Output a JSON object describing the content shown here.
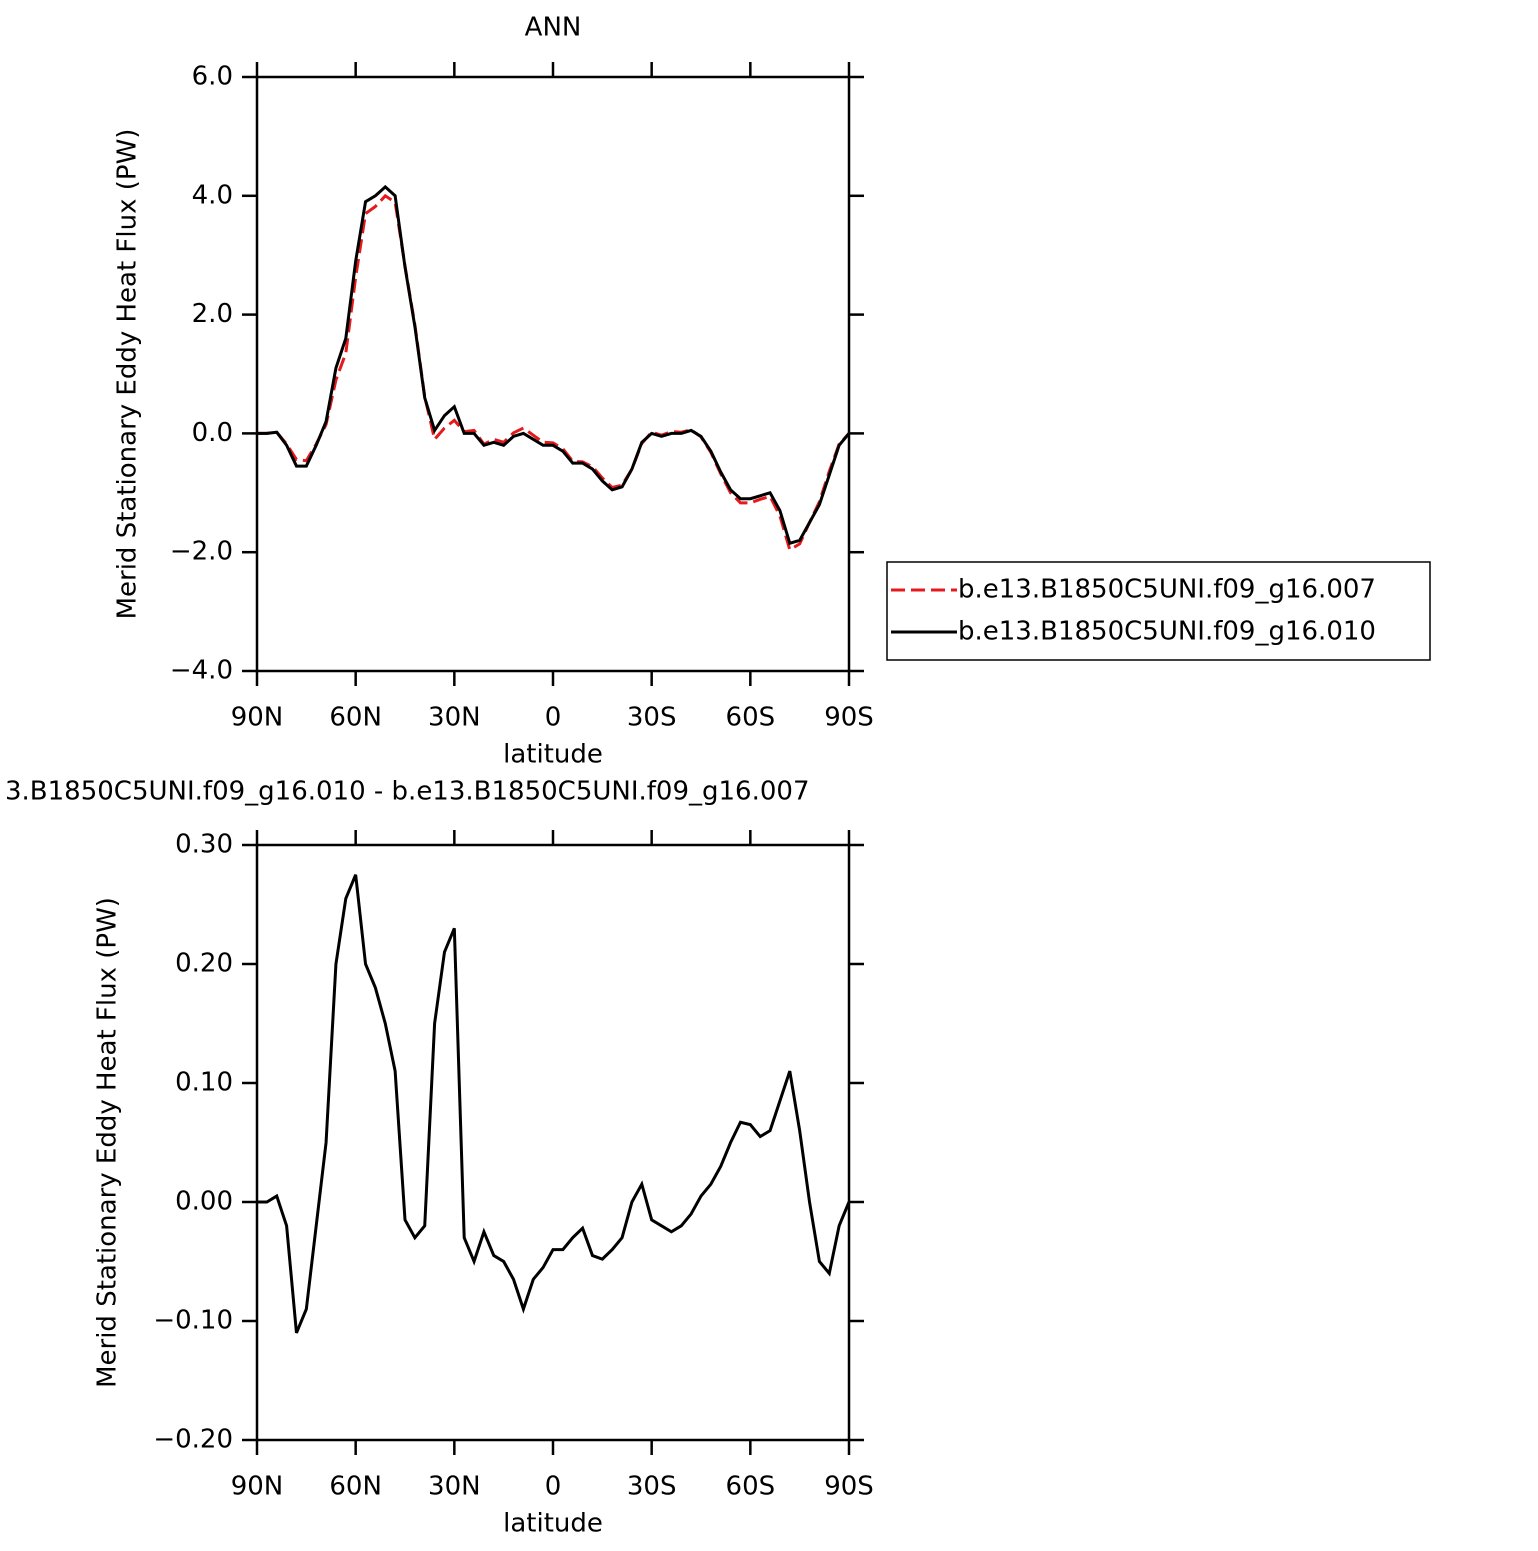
{
  "chart_data": [
    {
      "type": "line",
      "title": "ANN",
      "x_label": "latitude",
      "y_label": "Merid Stationary Eddy Heat Flux (PW)",
      "x": [
        90,
        87,
        84,
        81,
        78,
        75,
        72,
        69,
        66,
        63,
        60,
        57,
        54,
        51,
        48,
        45,
        42,
        39,
        36,
        33,
        30,
        27,
        24,
        21,
        18,
        15,
        12,
        9,
        6,
        3,
        0,
        -3,
        -6,
        -9,
        -12,
        -15,
        -18,
        -21,
        -24,
        -27,
        -30,
        -33,
        -36,
        -39,
        -42,
        -45,
        -48,
        -51,
        -54,
        -57,
        -60,
        -63,
        -66,
        -69,
        -72,
        -75,
        -78,
        -81,
        -84,
        -87,
        -90
      ],
      "xlim": [
        90,
        -90
      ],
      "xticks": [
        {
          "value": 90,
          "label": "90N"
        },
        {
          "value": 60,
          "label": "60N"
        },
        {
          "value": 30,
          "label": "30N"
        },
        0,
        {
          "value": -30,
          "label": "30S"
        },
        {
          "value": -60,
          "label": "60S"
        },
        {
          "value": -90,
          "label": "90S"
        }
      ],
      "ylim": [
        -4,
        6
      ],
      "yticks": [
        {
          "value": -4,
          "label": "−4.0"
        },
        {
          "value": -2,
          "label": "−2.0"
        },
        {
          "value": 0,
          "label": "0.0"
        },
        {
          "value": 2,
          "label": "2.0"
        },
        {
          "value": 4,
          "label": "4.0"
        },
        {
          "value": 6,
          "label": "6.0"
        }
      ],
      "legend": "right",
      "series": [
        {
          "name": "b.e13.B1850C5UNI.f09_g16.007",
          "color": "#e41a1c",
          "dashed": true,
          "values": [
            0,
            0,
            0.02,
            -0.18,
            -0.44,
            -0.46,
            -0.18,
            0.15,
            0.9,
            1.35,
            2.63,
            3.7,
            3.82,
            4.0,
            3.89,
            2.82,
            1.83,
            0.62,
            -0.1,
            0.09,
            0.22,
            0.03,
            0.05,
            -0.18,
            -0.1,
            -0.15,
            0.01,
            0.09,
            -0.03,
            -0.15,
            -0.16,
            -0.26,
            -0.47,
            -0.48,
            -0.56,
            -0.75,
            -0.91,
            -0.87,
            -0.6,
            -0.17,
            0.02,
            -0.03,
            0.03,
            0.02,
            0.06,
            -0.06,
            -0.32,
            -0.68,
            -1.0,
            -1.17,
            -1.17,
            -1.11,
            -1.06,
            -1.39,
            -1.96,
            -1.86,
            -1.5,
            -1.15,
            -0.64,
            -0.18,
            0
          ]
        },
        {
          "name": "b.e13.B1850C5UNI.f09_g16.010",
          "color": "#000000",
          "dashed": false,
          "values": [
            0,
            0,
            0.02,
            -0.2,
            -0.55,
            -0.55,
            -0.2,
            0.2,
            1.1,
            1.6,
            2.9,
            3.9,
            4.0,
            4.15,
            4.0,
            2.8,
            1.8,
            0.6,
            0.05,
            0.3,
            0.45,
            0,
            0,
            -0.2,
            -0.15,
            -0.2,
            -0.05,
            0,
            -0.1,
            -0.2,
            -0.2,
            -0.3,
            -0.5,
            -0.5,
            -0.6,
            -0.8,
            -0.95,
            -0.9,
            -0.6,
            -0.15,
            0,
            -0.05,
            0,
            0,
            0.05,
            -0.05,
            -0.3,
            -0.65,
            -0.95,
            -1.1,
            -1.1,
            -1.05,
            -1.0,
            -1.3,
            -1.85,
            -1.8,
            -1.5,
            -1.2,
            -0.7,
            -0.2,
            0
          ]
        }
      ]
    },
    {
      "type": "line",
      "title": "3.B1850C5UNI.f09_g16.010 - b.e13.B1850C5UNI.f09_g16.007",
      "x_label": "latitude",
      "y_label": "Merid Stationary Eddy Heat Flux (PW)",
      "x": [
        90,
        87,
        84,
        81,
        78,
        75,
        72,
        69,
        66,
        63,
        60,
        57,
        54,
        51,
        48,
        45,
        42,
        39,
        36,
        33,
        30,
        27,
        24,
        21,
        18,
        15,
        12,
        9,
        6,
        3,
        0,
        -3,
        -6,
        -9,
        -12,
        -15,
        -18,
        -21,
        -24,
        -27,
        -30,
        -33,
        -36,
        -39,
        -42,
        -45,
        -48,
        -51,
        -54,
        -57,
        -60,
        -63,
        -66,
        -69,
        -72,
        -75,
        -78,
        -81,
        -84,
        -87,
        -90
      ],
      "xlim": [
        90,
        -90
      ],
      "xticks": [
        {
          "value": 90,
          "label": "90N"
        },
        {
          "value": 60,
          "label": "60N"
        },
        {
          "value": 30,
          "label": "30N"
        },
        0,
        {
          "value": -30,
          "label": "30S"
        },
        {
          "value": -60,
          "label": "60S"
        },
        {
          "value": -90,
          "label": "90S"
        }
      ],
      "ylim": [
        -0.2,
        0.3
      ],
      "yticks": [
        {
          "value": -0.2,
          "label": "−0.20"
        },
        {
          "value": -0.1,
          "label": "−0.10"
        },
        {
          "value": 0,
          "label": "0.00"
        },
        {
          "value": 0.1,
          "label": "0.10"
        },
        {
          "value": 0.2,
          "label": "0.20"
        },
        {
          "value": 0.3,
          "label": "0.30"
        }
      ],
      "series": [
        {
          "color": "#000000",
          "dashed": false,
          "values": [
            0,
            0,
            0.005,
            -0.02,
            -0.11,
            -0.09,
            -0.02,
            0.05,
            0.2,
            0.255,
            0.275,
            0.2,
            0.18,
            0.15,
            0.11,
            -0.015,
            -0.03,
            -0.02,
            0.15,
            0.21,
            0.23,
            -0.03,
            -0.05,
            -0.025,
            -0.045,
            -0.05,
            -0.065,
            -0.09,
            -0.065,
            -0.055,
            -0.04,
            -0.04,
            -0.03,
            -0.022,
            -0.045,
            -0.048,
            -0.04,
            -0.03,
            0,
            0.015,
            -0.015,
            -0.02,
            -0.025,
            -0.02,
            -0.01,
            0.005,
            0.015,
            0.03,
            0.05,
            0.067,
            0.065,
            0.055,
            0.06,
            0.085,
            0.11,
            0.06,
            0,
            -0.05,
            -0.06,
            -0.02,
            0
          ]
        }
      ]
    }
  ]
}
